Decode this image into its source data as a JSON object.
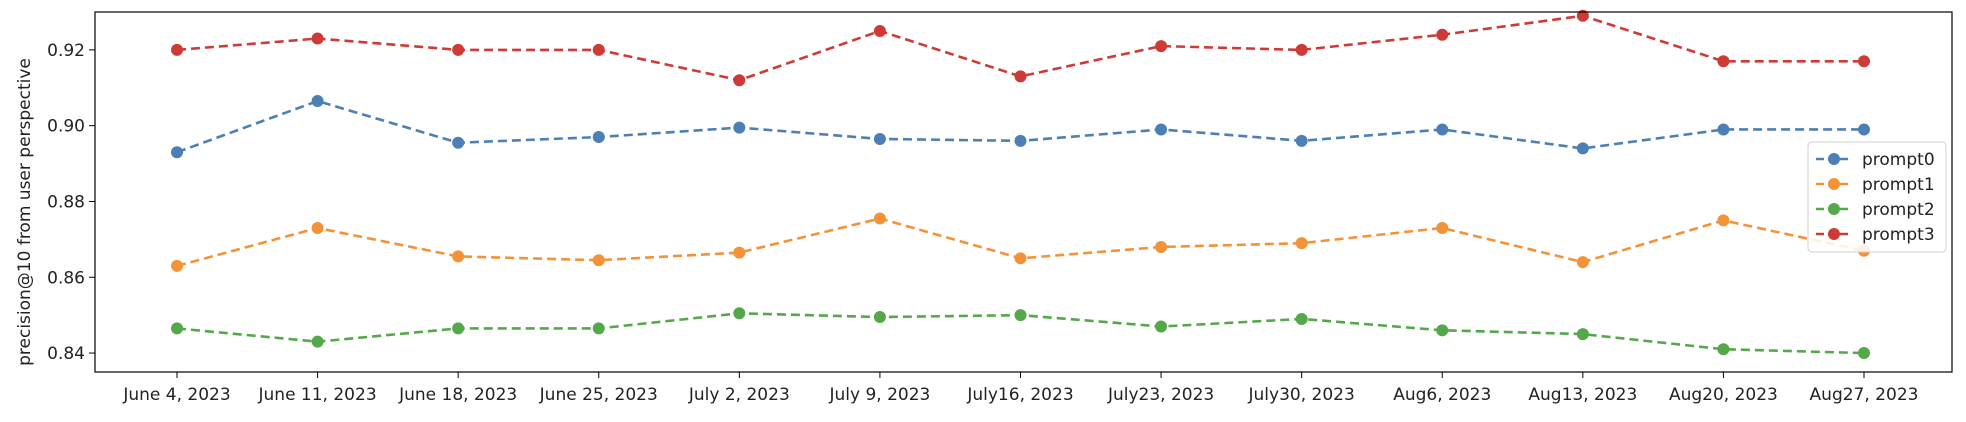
{
  "chart_data": {
    "type": "line",
    "title": "",
    "xlabel": "",
    "ylabel": "precision@10 from user perspective",
    "categories": [
      "June 4, 2023",
      "June 11, 2023",
      "June 18, 2023",
      "June 25, 2023",
      "July 2, 2023",
      "July 9, 2023",
      "July16, 2023",
      "July23, 2023",
      "July30, 2023",
      "Aug6, 2023",
      "Aug13, 2023",
      "Aug20, 2023",
      "Aug27, 2023"
    ],
    "ylim": [
      0.835,
      0.93
    ],
    "yticks": [
      "0.84",
      "0.86",
      "0.88",
      "0.90",
      "0.92"
    ],
    "grid": false,
    "legend_position": "center-right",
    "line_style": "dashed",
    "marker": "circle",
    "series": [
      {
        "name": "prompt0",
        "color": "#4c80b4",
        "values": [
          0.893,
          0.9065,
          0.8955,
          0.897,
          0.8995,
          0.8965,
          0.896,
          0.899,
          0.896,
          0.899,
          0.894,
          0.899,
          0.899
        ]
      },
      {
        "name": "prompt1",
        "color": "#f39237",
        "values": [
          0.863,
          0.873,
          0.8655,
          0.8645,
          0.8665,
          0.8755,
          0.865,
          0.868,
          0.869,
          0.873,
          0.864,
          0.875,
          0.867
        ]
      },
      {
        "name": "prompt2",
        "color": "#55a84a",
        "values": [
          0.8465,
          0.843,
          0.8465,
          0.8465,
          0.8505,
          0.8495,
          0.85,
          0.847,
          0.849,
          0.846,
          0.845,
          0.841,
          0.84
        ]
      },
      {
        "name": "prompt3",
        "color": "#ce3b37",
        "values": [
          0.92,
          0.923,
          0.92,
          0.92,
          0.912,
          0.925,
          0.913,
          0.921,
          0.92,
          0.924,
          0.929,
          0.917,
          0.917
        ]
      }
    ]
  }
}
